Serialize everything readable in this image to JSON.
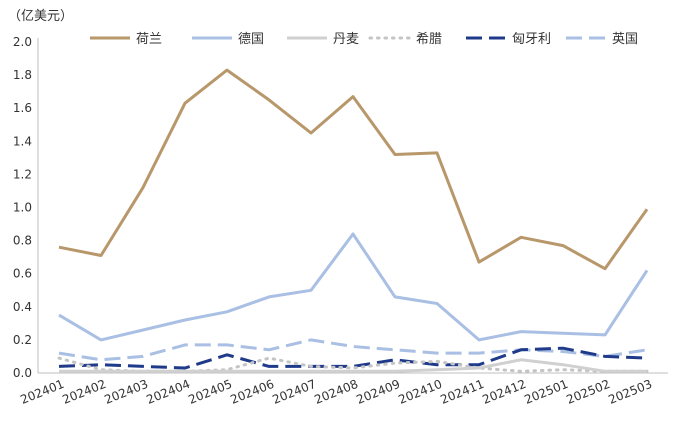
{
  "chart_data": {
    "type": "line",
    "unit_label": "（亿美元）",
    "categories": [
      "202401",
      "202402",
      "202403",
      "202404",
      "202405",
      "202406",
      "202407",
      "202408",
      "202409",
      "202410",
      "202411",
      "202412",
      "202501",
      "202502",
      "202503"
    ],
    "ylim": [
      0,
      2.0
    ],
    "yticks": [
      "0.0",
      "0.2",
      "0.4",
      "0.6",
      "0.8",
      "1.0",
      "1.2",
      "1.4",
      "1.6",
      "1.8",
      "2.0"
    ],
    "grid": false,
    "legend_position": "top",
    "series": [
      {
        "name": "荷兰",
        "color": "#b8976a",
        "style": "solid",
        "width": 3,
        "values": [
          0.76,
          0.71,
          1.12,
          1.63,
          1.83,
          1.65,
          1.45,
          1.67,
          1.32,
          1.33,
          0.67,
          0.82,
          0.77,
          0.63,
          0.99
        ]
      },
      {
        "name": "德国",
        "color": "#a9bfe3",
        "style": "solid",
        "width": 3,
        "values": [
          0.35,
          0.2,
          0.26,
          0.32,
          0.37,
          0.46,
          0.5,
          0.84,
          0.46,
          0.42,
          0.2,
          0.25,
          0.24,
          0.23,
          0.62
        ]
      },
      {
        "name": "丹麦",
        "color": "#d0d0d0",
        "style": "solid",
        "width": 3,
        "values": [
          0.01,
          0.01,
          0.01,
          0.01,
          0.01,
          0.01,
          0.01,
          0.01,
          0.01,
          0.02,
          0.03,
          0.08,
          0.05,
          0.01,
          0.01
        ]
      },
      {
        "name": "希腊",
        "color": "#c4c4c4",
        "style": "dotted",
        "width": 3,
        "values": [
          0.09,
          0.02,
          0.01,
          0.01,
          0.02,
          0.09,
          0.04,
          0.03,
          0.06,
          0.07,
          0.03,
          0.01,
          0.02,
          0.01,
          0.01
        ]
      },
      {
        "name": "匈牙利",
        "color": "#1f3a8a",
        "style": "dashed-long",
        "width": 3,
        "values": [
          0.04,
          0.05,
          0.04,
          0.03,
          0.11,
          0.04,
          0.04,
          0.04,
          0.08,
          0.05,
          0.05,
          0.14,
          0.15,
          0.1,
          0.09
        ]
      },
      {
        "name": "英国",
        "color": "#a9bfe3",
        "style": "dashed-long",
        "width": 3,
        "values": [
          0.12,
          0.08,
          0.1,
          0.17,
          0.17,
          0.14,
          0.2,
          0.16,
          0.14,
          0.12,
          0.12,
          0.14,
          0.13,
          0.1,
          0.14
        ]
      }
    ]
  }
}
